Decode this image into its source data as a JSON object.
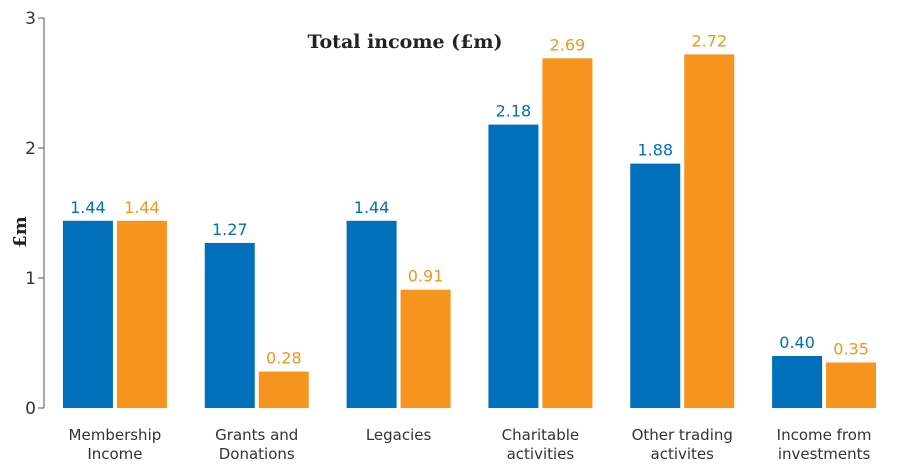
{
  "chart_data": {
    "type": "bar",
    "title": "Total income (£m)",
    "ylabel": "£m",
    "xlabel": "",
    "ylim": [
      0,
      3
    ],
    "yticks": [
      "0",
      "1",
      "2",
      "3"
    ],
    "ytick_values": [
      0,
      1,
      2,
      3
    ],
    "grid": false,
    "legend": "none",
    "categories": [
      [
        "Membership",
        "Income"
      ],
      [
        "Grants and",
        "Donations"
      ],
      [
        "Legacies"
      ],
      [
        "Charitable",
        "activities"
      ],
      [
        "Other trading",
        "activites"
      ],
      [
        "Income from",
        "investments"
      ]
    ],
    "series": [
      {
        "color": "#0070bb",
        "values": [
          1.44,
          1.27,
          1.44,
          2.18,
          1.88,
          0.4
        ],
        "labels": [
          "1.44",
          "1.27",
          "1.44",
          "2.18",
          "1.88",
          "0.40"
        ]
      },
      {
        "color": "#f7941d",
        "values": [
          1.44,
          0.28,
          0.91,
          2.69,
          2.72,
          0.35
        ],
        "labels": [
          "1.44",
          "0.28",
          "0.91",
          "2.69",
          "2.72",
          "0.35"
        ]
      }
    ]
  }
}
